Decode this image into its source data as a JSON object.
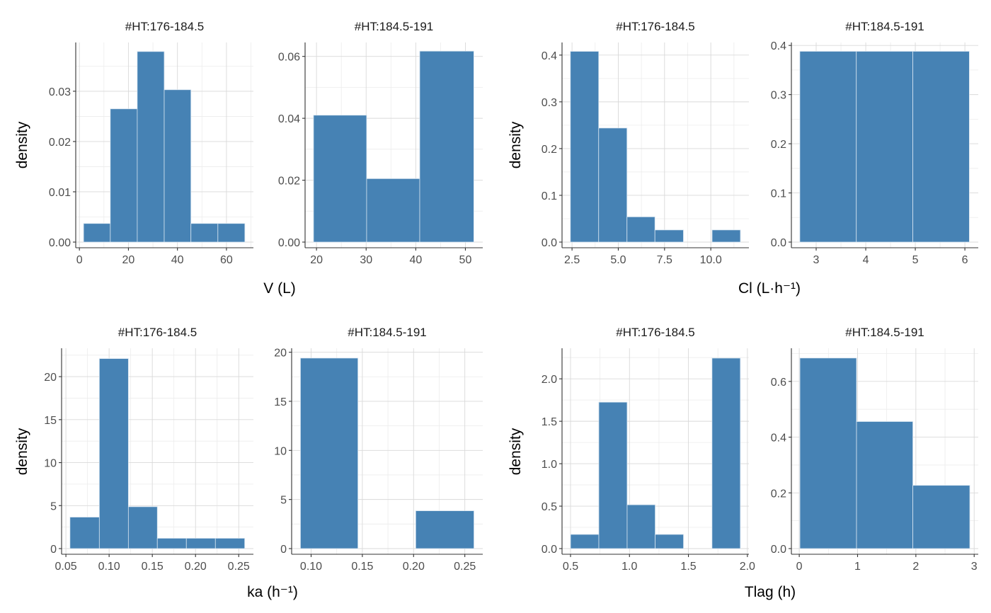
{
  "chart_data": [
    {
      "type": "bar",
      "panel": "#HT:176-184.5",
      "variable": "V (L)",
      "ylabel": "density",
      "bin_edges": [
        1.7,
        12.6,
        23.6,
        34.6,
        45.5,
        56.5,
        67.5
      ],
      "values": [
        0.0037,
        0.0265,
        0.0379,
        0.0303,
        0.0037,
        0.0037
      ],
      "xlim": [
        -1.5,
        71
      ],
      "ylim": [
        0,
        0.0397
      ],
      "xticks": [
        0,
        20,
        40,
        60
      ],
      "xtick_labels": [
        "0",
        "20",
        "40",
        "60"
      ],
      "yticks": [
        0,
        0.01,
        0.02,
        0.03
      ],
      "ytick_labels": [
        "0.00",
        "0.01",
        "0.02",
        "0.03"
      ]
    },
    {
      "type": "bar",
      "panel": "#HT:184.5-191",
      "variable": "V (L)",
      "bin_edges": [
        19.4,
        30.1,
        40.8,
        51.7
      ],
      "values": [
        0.041,
        0.0205,
        0.0617
      ],
      "xlim": [
        17.7,
        53.5
      ],
      "ylim": [
        0,
        0.0645
      ],
      "xticks": [
        20,
        30,
        40,
        50
      ],
      "xtick_labels": [
        "20",
        "30",
        "40",
        "50"
      ],
      "yticks": [
        0,
        0.02,
        0.04,
        0.06
      ],
      "ytick_labels": [
        "0.00",
        "0.02",
        "0.04",
        "0.06"
      ]
    },
    {
      "type": "bar",
      "panel": "#HT:176-184.5",
      "variable": "Cl (L·h⁻¹)",
      "ylabel": "density",
      "bin_edges": [
        2.41,
        3.94,
        5.47,
        6.98,
        8.52,
        10.07,
        11.6
      ],
      "values": [
        0.408,
        0.244,
        0.054,
        0.026,
        0,
        0.026
      ],
      "xlim": [
        1.96,
        12.06
      ],
      "ylim": [
        0,
        0.427
      ],
      "xticks": [
        2.5,
        5,
        7.5,
        10
      ],
      "xtick_labels": [
        "2.5",
        "5.0",
        "7.5",
        "10.0"
      ],
      "yticks": [
        0,
        0.1,
        0.2,
        0.3,
        0.4
      ],
      "ytick_labels": [
        "0.0",
        "0.1",
        "0.2",
        "0.3",
        "0.4"
      ]
    },
    {
      "type": "bar",
      "panel": "#HT:184.5-191",
      "variable": "Cl (L·h⁻¹)",
      "bin_edges": [
        2.67,
        3.81,
        4.95,
        6.09
      ],
      "values": [
        0.388,
        0.388,
        0.388
      ],
      "xlim": [
        2.5,
        6.27
      ],
      "ylim": [
        0,
        0.406
      ],
      "xticks": [
        3,
        4,
        5,
        6
      ],
      "xtick_labels": [
        "3",
        "4",
        "5",
        "6"
      ],
      "yticks": [
        0,
        0.1,
        0.2,
        0.3,
        0.4
      ],
      "ytick_labels": [
        "0.0",
        "0.1",
        "0.2",
        "0.3",
        "0.4"
      ]
    },
    {
      "type": "bar",
      "panel": "#HT:176-184.5",
      "variable": "ka (h⁻¹)",
      "ylabel": "density",
      "bin_edges": [
        0.0547,
        0.0887,
        0.1223,
        0.1558,
        0.1894,
        0.223,
        0.2569
      ],
      "values": [
        3.66,
        22.1,
        4.87,
        1.2,
        1.2,
        1.2
      ],
      "xlim": [
        0.045,
        0.267
      ],
      "ylim": [
        0,
        23.3
      ],
      "xticks": [
        0.05,
        0.1,
        0.15,
        0.2,
        0.25
      ],
      "xtick_labels": [
        "0.05",
        "0.10",
        "0.15",
        "0.20",
        "0.25"
      ],
      "yticks": [
        0,
        5,
        10,
        15,
        20
      ],
      "ytick_labels": [
        "0",
        "5",
        "10",
        "15",
        "20"
      ]
    },
    {
      "type": "bar",
      "panel": "#HT:184.5-191",
      "variable": "ka (h⁻¹)",
      "bin_edges": [
        0.0896,
        0.1457,
        0.2021,
        0.2589
      ],
      "values": [
        19.4,
        0,
        3.85
      ],
      "xlim": [
        0.081,
        0.2675
      ],
      "ylim": [
        0,
        20.4
      ],
      "xticks": [
        0.1,
        0.15,
        0.2,
        0.25
      ],
      "xtick_labels": [
        "0.10",
        "0.15",
        "0.20",
        "0.25"
      ],
      "yticks": [
        0,
        5,
        10,
        15,
        20
      ],
      "ytick_labels": [
        "0",
        "5",
        "10",
        "15",
        "20"
      ]
    },
    {
      "type": "bar",
      "panel": "#HT:176-184.5",
      "variable": "Tlag (h)",
      "ylabel": "density",
      "bin_edges": [
        0.5,
        0.74,
        0.98,
        1.218,
        1.458,
        1.7,
        1.94
      ],
      "values": [
        0.167,
        1.725,
        0.516,
        0.167,
        0,
        2.244
      ],
      "xlim": [
        0.428,
        2.013
      ],
      "ylim": [
        0,
        2.36
      ],
      "xticks": [
        0.5,
        1,
        1.5,
        2
      ],
      "xtick_labels": [
        "0.5",
        "1.0",
        "1.5",
        "2.0"
      ],
      "yticks": [
        0,
        0.5,
        1,
        1.5,
        2
      ],
      "ytick_labels": [
        "0.0",
        "0.5",
        "1.0",
        "1.5",
        "2.0"
      ]
    },
    {
      "type": "bar",
      "panel": "#HT:184.5-191",
      "variable": "Tlag (h)",
      "bin_edges": [
        0.011,
        0.982,
        1.948,
        2.925
      ],
      "values": [
        0.684,
        0.456,
        0.227
      ],
      "xlim": [
        -0.135,
        3.07
      ],
      "ylim": [
        0,
        0.719
      ],
      "xticks": [
        0,
        1,
        2,
        3
      ],
      "xtick_labels": [
        "0",
        "1",
        "2",
        "3"
      ],
      "yticks": [
        0,
        0.2,
        0.4,
        0.6
      ],
      "ytick_labels": [
        "0.0",
        "0.2",
        "0.4",
        "0.6"
      ]
    }
  ],
  "axis_titles": {
    "v": "V (L)",
    "cl": "Cl (L·h⁻¹)",
    "ka": "ka (h⁻¹)",
    "tlag": "Tlag (h)",
    "density": "density"
  },
  "colors": {
    "bar_fill": "#4682B4",
    "bar_outline": "#d6e4f0",
    "grid_major": "#d9d9d9",
    "grid_minor": "#ececec",
    "axis": "#333333"
  },
  "grid": true
}
